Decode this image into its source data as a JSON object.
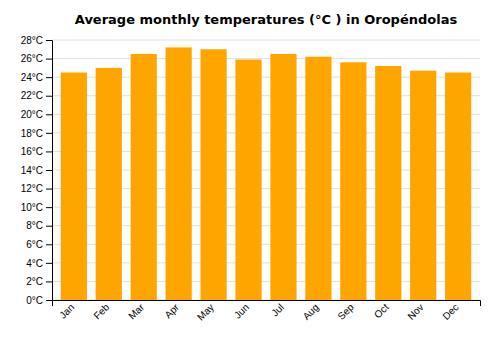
{
  "chart_data": {
    "type": "bar",
    "title": "Average monthly temperatures (°C ) in Oropéndolas",
    "categories": [
      "Jan",
      "Feb",
      "Mar",
      "Apr",
      "May",
      "Jun",
      "Jul",
      "Aug",
      "Sep",
      "Oct",
      "Nov",
      "Dec"
    ],
    "values": [
      24.5,
      25.0,
      26.5,
      27.2,
      27.0,
      25.9,
      26.5,
      26.2,
      25.6,
      25.2,
      24.7,
      24.5
    ],
    "color": "#FFA500",
    "ylim": [
      0,
      28
    ],
    "yticks": [
      {
        "value": 0,
        "label": "0°C"
      },
      {
        "value": 2,
        "label": "2°C"
      },
      {
        "value": 4,
        "label": "4°C"
      },
      {
        "value": 6,
        "label": "6°C"
      },
      {
        "value": 8,
        "label": "8°C"
      },
      {
        "value": 10,
        "label": "10°C"
      },
      {
        "value": 12,
        "label": "12°C"
      },
      {
        "value": 14,
        "label": "14°C"
      },
      {
        "value": 16,
        "label": "16°C"
      },
      {
        "value": 18,
        "label": "18°C"
      },
      {
        "value": 20,
        "label": "20°C"
      },
      {
        "value": 22,
        "label": "22°C"
      },
      {
        "value": 24,
        "label": "24°C"
      },
      {
        "value": 26,
        "label": "26°C"
      },
      {
        "value": 28,
        "label": "28°C"
      }
    ],
    "grid": true
  }
}
